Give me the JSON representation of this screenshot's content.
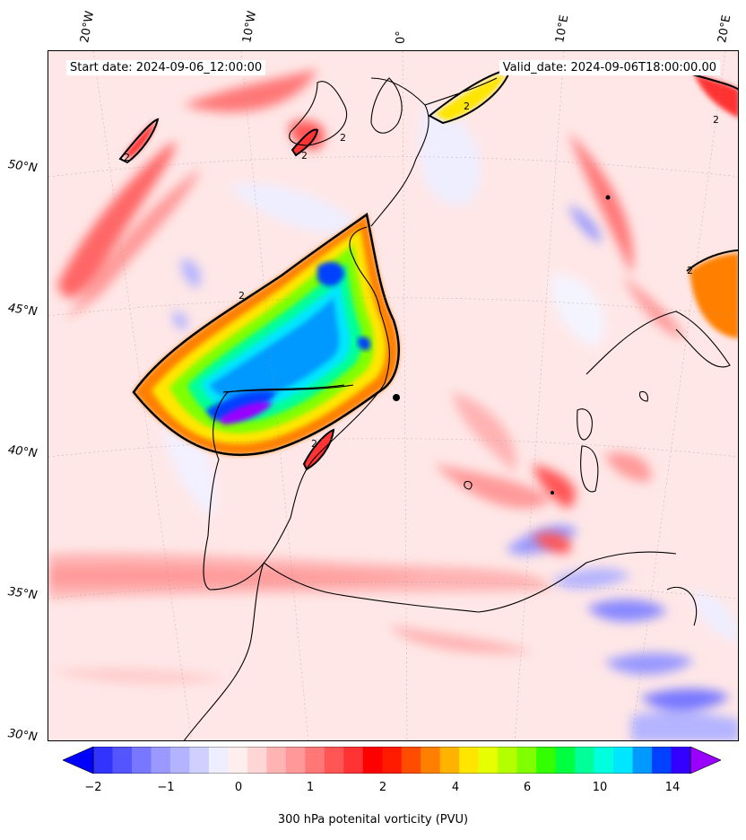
{
  "map": {
    "start_date": "Start date: 2024-09-06_12:00:00",
    "valid_date": "Valid_date: 2024-09-06T18:00:00.00",
    "lon_labels": [
      "20°W",
      "10°W",
      "0°",
      "10°E",
      "20°E"
    ],
    "lat_labels": [
      "50°N",
      "45°N",
      "40°N",
      "35°N",
      "30°N"
    ],
    "contour_label": "2"
  },
  "colorbar": {
    "title": "300 hPa potenital vorticity (PVU)",
    "tick_labels": [
      "−2",
      "−1",
      "0",
      "1",
      "2",
      "4",
      "6",
      "10",
      "14"
    ],
    "colors": [
      "#0000ff",
      "#3333ff",
      "#5555ff",
      "#7777ff",
      "#9999ff",
      "#b3b3ff",
      "#d0d0ff",
      "#eeeeff",
      "#ffeeee",
      "#ffd6d6",
      "#ffb3b3",
      "#ff9999",
      "#ff7777",
      "#ff5555",
      "#ff3333",
      "#ff0000",
      "#ff1a00",
      "#ff4d00",
      "#ff8000",
      "#ffb300",
      "#ffe600",
      "#e6ff00",
      "#b3ff00",
      "#80ff00",
      "#33ff00",
      "#00ff40",
      "#00ff99",
      "#00ffdd",
      "#00e6ff",
      "#0099ff",
      "#0040ff",
      "#3300ff",
      "#9900ff"
    ]
  }
}
